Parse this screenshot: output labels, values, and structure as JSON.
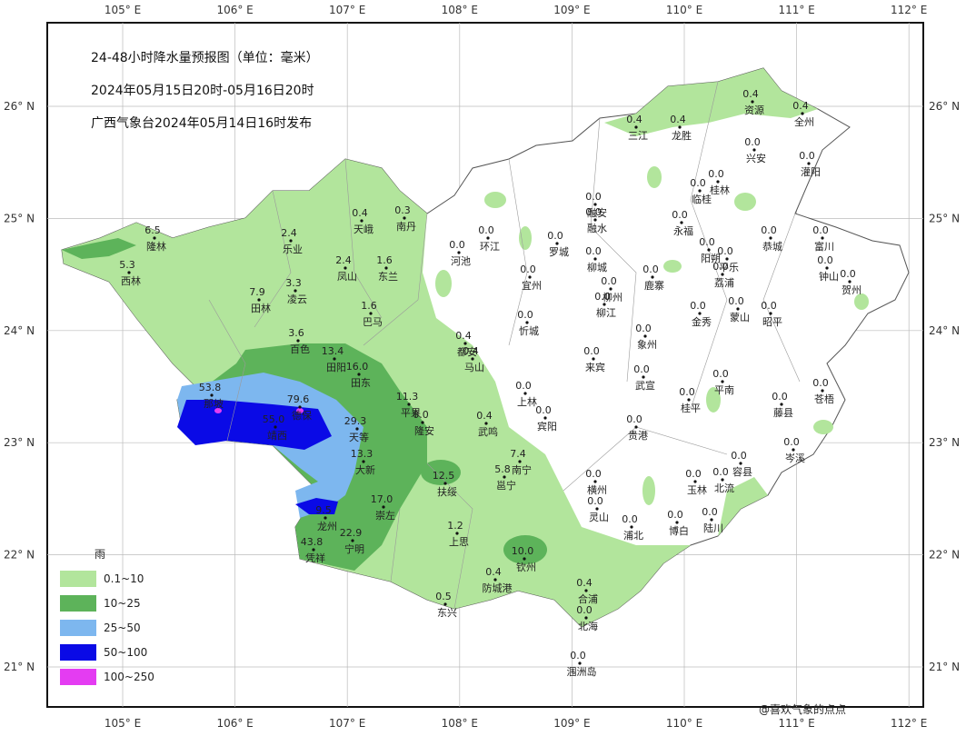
{
  "header": {
    "title": "24-48小时降水量预报图（单位：毫米）",
    "period": "2024年05月15日20时-05月16日20时",
    "issuer": "广西气象台2024年05月14日16时发布"
  },
  "longitudes": [
    "105° E",
    "106° E",
    "107° E",
    "108° E",
    "109° E",
    "110° E",
    "111° E",
    "112° E"
  ],
  "latitudes": [
    "26° N",
    "25° N",
    "24° N",
    "23° N",
    "22° N",
    "21° N"
  ],
  "legend": {
    "title": "雨",
    "items": [
      {
        "label": "0.1~10",
        "color": "#b2e59c"
      },
      {
        "label": "10~25",
        "color": "#5db35a"
      },
      {
        "label": "25~50",
        "color": "#7db7ef"
      },
      {
        "label": "50~100",
        "color": "#0a0ae6"
      },
      {
        "label": "100~250",
        "color": "#e43cf2"
      }
    ]
  },
  "stations": [
    {
      "name": "隆林",
      "value": "6.5"
    },
    {
      "name": "西林",
      "value": "5.3"
    },
    {
      "name": "乐业",
      "value": "2.4"
    },
    {
      "name": "天峨",
      "value": "0.4"
    },
    {
      "name": "南丹",
      "value": "0.3"
    },
    {
      "name": "凤山",
      "value": "2.4"
    },
    {
      "name": "东兰",
      "value": "1.6"
    },
    {
      "name": "凌云",
      "value": "3.3"
    },
    {
      "name": "田林",
      "value": "7.9"
    },
    {
      "name": "巴马",
      "value": "1.6"
    },
    {
      "name": "百色",
      "value": "3.6"
    },
    {
      "name": "田阳",
      "value": "13.4"
    },
    {
      "name": "田东",
      "value": "16.0"
    },
    {
      "name": "那坡",
      "value": "53.8"
    },
    {
      "name": "德保",
      "value": "79.6"
    },
    {
      "name": "靖西",
      "value": "55.0"
    },
    {
      "name": "天等",
      "value": "29.3"
    },
    {
      "name": "平果",
      "value": "11.3"
    },
    {
      "name": "隆安",
      "value": "0.0"
    },
    {
      "name": "大新",
      "value": "13.3"
    },
    {
      "name": "崇左",
      "value": "17.0"
    },
    {
      "name": "龙州",
      "value": "9.5"
    },
    {
      "name": "宁明",
      "value": "22.9"
    },
    {
      "name": "凭祥",
      "value": "43.8"
    },
    {
      "name": "扶绥",
      "value": "12.5"
    },
    {
      "name": "上思",
      "value": "1.2"
    },
    {
      "name": "东兴",
      "value": "0.5"
    },
    {
      "name": "防城港",
      "value": "0.4"
    },
    {
      "name": "钦州",
      "value": "10.0"
    },
    {
      "name": "合浦",
      "value": "0.4"
    },
    {
      "name": "北海",
      "value": "0.0"
    },
    {
      "name": "涠洲岛",
      "value": "0.0"
    },
    {
      "name": "邕宁",
      "value": "5.8"
    },
    {
      "name": "南宁",
      "value": "7.4"
    },
    {
      "name": "武鸣",
      "value": "0.4"
    },
    {
      "name": "都安",
      "value": "0.4"
    },
    {
      "name": "马山",
      "value": "0.4"
    },
    {
      "name": "上林",
      "value": "0.0"
    },
    {
      "name": "宾阳",
      "value": "0.0"
    },
    {
      "name": "环江",
      "value": "0.0"
    },
    {
      "name": "河池",
      "value": "0.0"
    },
    {
      "name": "罗城",
      "value": "0.0"
    },
    {
      "name": "宜州",
      "value": "0.0"
    },
    {
      "name": "忻城",
      "value": "0.0"
    },
    {
      "name": "融安",
      "value": "0.0"
    },
    {
      "name": "融水",
      "value": "0.0"
    },
    {
      "name": "柳城",
      "value": "0.0"
    },
    {
      "name": "柳州",
      "value": "0.0"
    },
    {
      "name": "柳江",
      "value": "0.0"
    },
    {
      "name": "鹿寨",
      "value": "0.0"
    },
    {
      "name": "来宾",
      "value": "0.0"
    },
    {
      "name": "象州",
      "value": "0.0"
    },
    {
      "name": "武宣",
      "value": "0.0"
    },
    {
      "name": "贵港",
      "value": "0.0"
    },
    {
      "name": "桂平",
      "value": "0.0"
    },
    {
      "name": "平南",
      "value": "0.0"
    },
    {
      "name": "横州",
      "value": "0.0"
    },
    {
      "name": "灵山",
      "value": "0.0"
    },
    {
      "name": "浦北",
      "value": "0.0"
    },
    {
      "name": "博白",
      "value": "0.0"
    },
    {
      "name": "陆川",
      "value": "0.0"
    },
    {
      "name": "玉林",
      "value": "0.0"
    },
    {
      "name": "北流",
      "value": "0.0"
    },
    {
      "name": "容县",
      "value": "0.0"
    },
    {
      "name": "岑溪",
      "value": "0.0"
    },
    {
      "name": "藤县",
      "value": "0.0"
    },
    {
      "name": "苍梧",
      "value": "0.0"
    },
    {
      "name": "昭平",
      "value": "0.0"
    },
    {
      "name": "蒙山",
      "value": "0.0"
    },
    {
      "name": "金秀",
      "value": "0.0"
    },
    {
      "name": "荔浦",
      "value": "0.0"
    },
    {
      "name": "平乐",
      "value": "0.0"
    },
    {
      "name": "阳朔",
      "value": "0.0"
    },
    {
      "name": "恭城",
      "value": "0.0"
    },
    {
      "name": "富川",
      "value": "0.0"
    },
    {
      "name": "钟山",
      "value": "0.0"
    },
    {
      "name": "贺州",
      "value": "0.0"
    },
    {
      "name": "永福",
      "value": "0.0"
    },
    {
      "name": "临桂",
      "value": "0.0"
    },
    {
      "name": "桂林",
      "value": "0.0"
    },
    {
      "name": "兴安",
      "value": "0.0"
    },
    {
      "name": "灌阳",
      "value": "0.0"
    },
    {
      "name": "资源",
      "value": "0.4"
    },
    {
      "name": "全州",
      "value": "0.4"
    },
    {
      "name": "龙胜",
      "value": "0.4"
    },
    {
      "name": "三江",
      "value": "0.4"
    }
  ],
  "watermark": "@喜欢气象的点点"
}
